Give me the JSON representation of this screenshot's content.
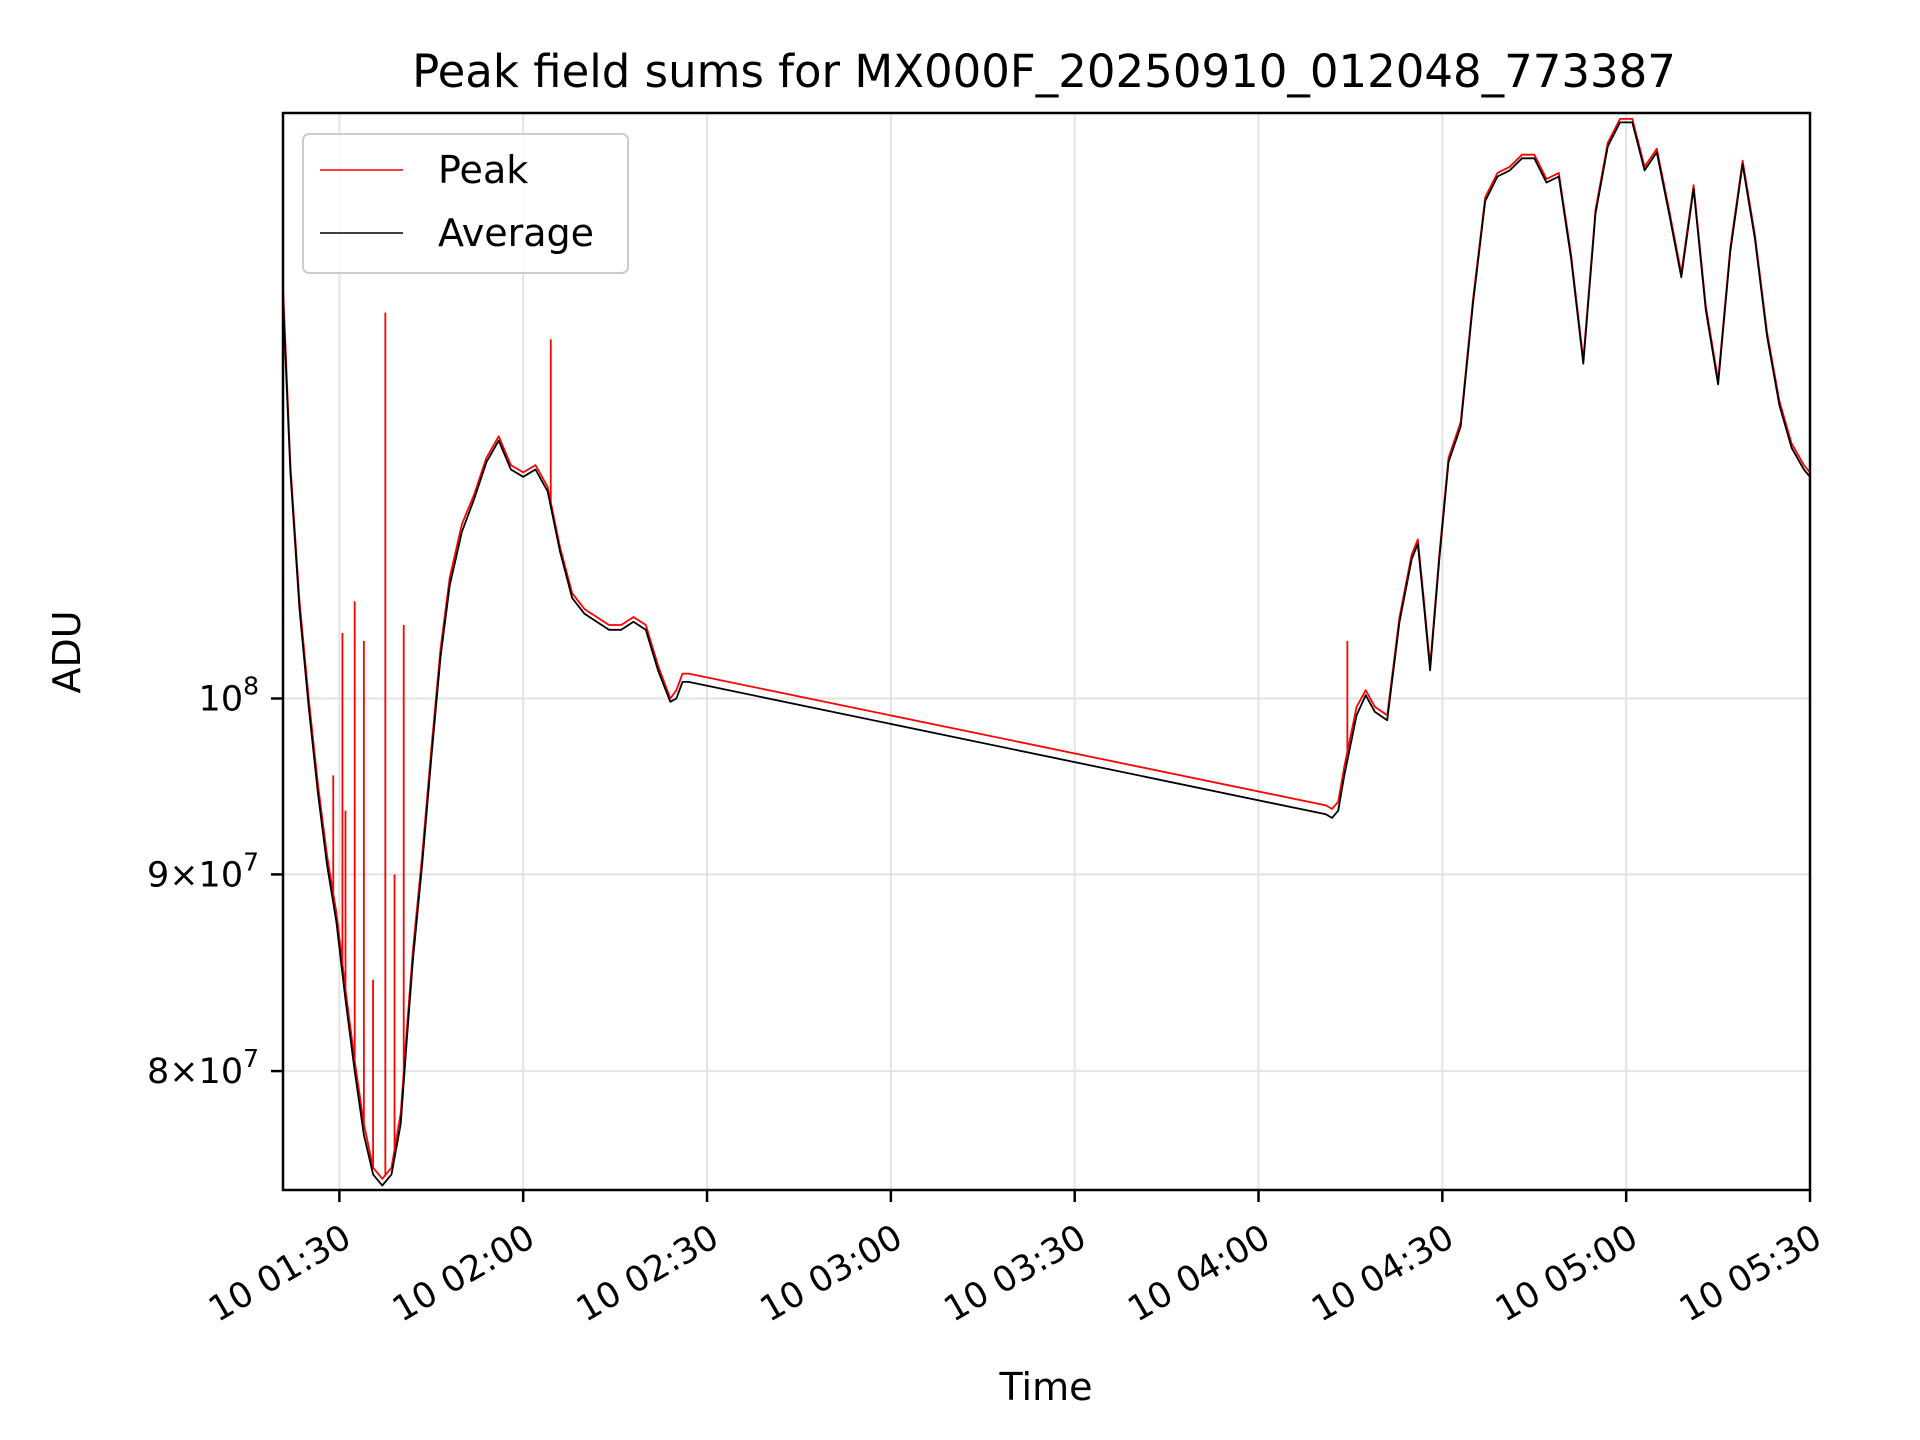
{
  "chart_data": {
    "type": "line",
    "title": "Peak field sums for MX000F_20250910_012048_773387",
    "xlabel": "Time",
    "ylabel": "ADU",
    "x_unit": "time of day (day 10)",
    "xlim": [
      "01:20:48",
      "05:30:00"
    ],
    "ylim": [
      74500000,
      142000000
    ],
    "y_scale": "log",
    "grid": true,
    "legend": {
      "placement": "top-left"
    },
    "x_ticks": [
      "10 01:30",
      "10 02:00",
      "10 02:30",
      "10 03:00",
      "10 03:30",
      "10 04:00",
      "10 04:30",
      "10 05:00",
      "10 05:30"
    ],
    "y_ticks": [
      {
        "value": 80000000,
        "label_base": "8",
        "label_exp": "7"
      },
      {
        "value": 90000000,
        "label_base": "9",
        "label_exp": "7"
      },
      {
        "value": 100000000,
        "label_base": "",
        "label_exp": "8"
      }
    ],
    "y_tick_mult": "×10",
    "y_tick_pow_base": "10",
    "series": [
      {
        "name": "Peak",
        "color": "#ff0000",
        "x": [
          "01:20:48",
          "01:22:00",
          "01:23:30",
          "01:25:00",
          "01:26:30",
          "01:28:00",
          "01:29:30",
          "01:31:00",
          "01:32:30",
          "01:34:00",
          "01:35:30",
          "01:37:00",
          "01:38:30",
          "01:40:00",
          "01:41:00",
          "01:42:00",
          "01:43:30",
          "01:45:00",
          "01:46:30",
          "01:48:00",
          "01:50:00",
          "01:52:00",
          "01:54:00",
          "01:56:00",
          "01:58:00",
          "02:00:00",
          "02:02:00",
          "02:04:00",
          "02:06:00",
          "02:08:00",
          "02:10:00",
          "02:12:00",
          "02:14:00",
          "02:16:00",
          "02:18:00",
          "02:20:00",
          "02:22:00",
          "02:24:00",
          "02:25:00",
          "02:26:00",
          "02:27:00",
          "04:11:00",
          "04:12:00",
          "04:13:00",
          "04:14:00",
          "04:16:00",
          "04:17:30",
          "04:19:00",
          "04:21:00",
          "04:23:00",
          "04:25:00",
          "04:26:00",
          "04:27:00",
          "04:28:00",
          "04:29:30",
          "04:31:00",
          "04:33:00",
          "04:35:00",
          "04:37:00",
          "04:39:00",
          "04:41:00",
          "04:43:00",
          "04:45:00",
          "04:47:00",
          "04:49:00",
          "04:51:00",
          "04:53:00",
          "04:55:00",
          "04:57:00",
          "04:59:00",
          "05:01:00",
          "05:03:00",
          "05:05:00",
          "05:07:00",
          "05:09:00",
          "05:11:00",
          "05:13:00",
          "05:15:00",
          "05:17:00",
          "05:19:00",
          "05:21:00",
          "05:23:00",
          "05:25:00",
          "05:27:00",
          "05:29:00",
          "05:30:00"
        ],
        "y": [
          128000000,
          115000000,
          106000000,
          100000000,
          95000000,
          91000000,
          88000000,
          84000000,
          80500000,
          77500000,
          75500000,
          75000000,
          75500000,
          78000000,
          82000000,
          86000000,
          91000000,
          97000000,
          103000000,
          107500000,
          111000000,
          113000000,
          115500000,
          117000000,
          115000000,
          114500000,
          115000000,
          113500000,
          109500000,
          106500000,
          105500000,
          105000000,
          104500000,
          104500000,
          105000000,
          104500000,
          102000000,
          100000000,
          100500000,
          101500000,
          101500000,
          93800000,
          93600000,
          94000000,
          96000000,
          99500000,
          100500000,
          99500000,
          99000000,
          105000000,
          109000000,
          110000000,
          106000000,
          102000000,
          109000000,
          115500000,
          118000000,
          127000000,
          135000000,
          137000000,
          137500000,
          138500000,
          138500000,
          136500000,
          137000000,
          130500000,
          122500000,
          134000000,
          139500000,
          141500000,
          141500000,
          137500000,
          139000000,
          134000000,
          129000000,
          136000000,
          126500000,
          121000000,
          131000000,
          138000000,
          132000000,
          124500000,
          119500000,
          116500000,
          115000000,
          114500000
        ],
        "spikes": [
          {
            "x": "01:29:00",
            "y": 95500000
          },
          {
            "x": "01:30:30",
            "y": 104000000
          },
          {
            "x": "01:31:00",
            "y": 93500000
          },
          {
            "x": "01:32:30",
            "y": 106000000
          },
          {
            "x": "01:34:00",
            "y": 103500000
          },
          {
            "x": "01:35:30",
            "y": 84500000
          },
          {
            "x": "01:37:30",
            "y": 126000000
          },
          {
            "x": "01:39:00",
            "y": 90000000
          },
          {
            "x": "01:40:30",
            "y": 104500000
          },
          {
            "x": "02:04:30",
            "y": 124000000
          },
          {
            "x": "04:14:30",
            "y": 103500000
          }
        ]
      },
      {
        "name": "Average",
        "color": "#000000",
        "x": [
          "01:20:48",
          "01:22:00",
          "01:23:30",
          "01:25:00",
          "01:26:30",
          "01:28:00",
          "01:29:30",
          "01:31:00",
          "01:32:30",
          "01:34:00",
          "01:35:30",
          "01:37:00",
          "01:38:30",
          "01:40:00",
          "01:41:00",
          "01:42:00",
          "01:43:30",
          "01:45:00",
          "01:46:30",
          "01:48:00",
          "01:50:00",
          "01:52:00",
          "01:54:00",
          "01:56:00",
          "01:58:00",
          "02:00:00",
          "02:02:00",
          "02:04:00",
          "02:06:00",
          "02:08:00",
          "02:10:00",
          "02:12:00",
          "02:14:00",
          "02:16:00",
          "02:18:00",
          "02:20:00",
          "02:22:00",
          "02:24:00",
          "02:25:00",
          "02:26:00",
          "02:27:00",
          "04:11:00",
          "04:12:00",
          "04:13:00",
          "04:14:00",
          "04:16:00",
          "04:17:30",
          "04:19:00",
          "04:21:00",
          "04:23:00",
          "04:25:00",
          "04:26:00",
          "04:27:00",
          "04:28:00",
          "04:29:30",
          "04:31:00",
          "04:33:00",
          "04:35:00",
          "04:37:00",
          "04:39:00",
          "04:41:00",
          "04:43:00",
          "04:45:00",
          "04:47:00",
          "04:49:00",
          "04:51:00",
          "04:53:00",
          "04:55:00",
          "04:57:00",
          "04:59:00",
          "05:01:00",
          "05:03:00",
          "05:05:00",
          "05:07:00",
          "05:09:00",
          "05:11:00",
          "05:13:00",
          "05:15:00",
          "05:17:00",
          "05:19:00",
          "05:21:00",
          "05:23:00",
          "05:25:00",
          "05:27:00",
          "05:29:00",
          "05:30:00"
        ],
        "y": [
          127000000,
          114500000,
          105500000,
          99500000,
          94500000,
          90500000,
          87500000,
          83500000,
          80000000,
          77000000,
          75200000,
          74700000,
          75200000,
          77500000,
          81500000,
          85500000,
          90500000,
          96500000,
          102500000,
          107000000,
          110500000,
          112700000,
          115200000,
          116700000,
          114700000,
          114200000,
          114700000,
          113200000,
          109200000,
          106200000,
          105200000,
          104700000,
          104200000,
          104200000,
          104700000,
          104200000,
          101700000,
          99800000,
          100000000,
          101000000,
          101000000,
          93300000,
          93100000,
          93500000,
          95500000,
          99000000,
          100200000,
          99200000,
          98700000,
          104700000,
          108700000,
          109700000,
          105700000,
          101700000,
          108700000,
          115200000,
          117700000,
          126700000,
          134700000,
          136700000,
          137200000,
          138200000,
          138200000,
          136200000,
          136700000,
          130200000,
          122200000,
          133700000,
          139200000,
          141200000,
          141200000,
          137200000,
          138700000,
          133700000,
          128700000,
          135700000,
          126200000,
          120700000,
          130700000,
          137700000,
          131700000,
          124200000,
          119200000,
          116200000,
          114700000,
          114200000
        ]
      }
    ]
  }
}
